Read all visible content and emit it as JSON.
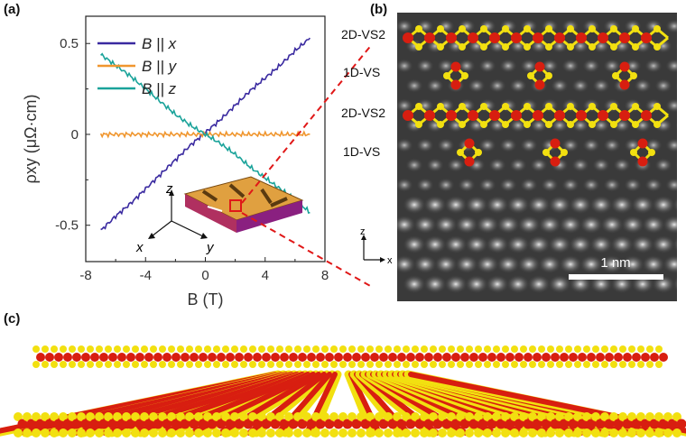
{
  "panels": {
    "a": "(a)",
    "b": "(b)",
    "c": "(c)"
  },
  "chart_data": {
    "type": "line",
    "xlabel": "B (T)",
    "ylabel": "ρxy (μΩ·cm)",
    "xlim": [
      -8,
      8
    ],
    "ylim": [
      -0.7,
      0.65
    ],
    "xticks": [
      "-8",
      "-4",
      "0",
      "4",
      "8"
    ],
    "yticks": [
      "-0.5",
      "0",
      "0.5"
    ],
    "x": [
      -7,
      -6,
      -5,
      -4,
      -3,
      -2,
      -1,
      0,
      1,
      2,
      3,
      4,
      5,
      6,
      7
    ],
    "series": [
      {
        "name": "B || x",
        "color": "#3a2aa0",
        "values": [
          -0.53,
          -0.45,
          -0.38,
          -0.3,
          -0.22,
          -0.14,
          -0.06,
          0.01,
          0.08,
          0.16,
          0.24,
          0.31,
          0.38,
          0.46,
          0.53
        ]
      },
      {
        "name": "B || y",
        "color": "#f0962e",
        "values": [
          0,
          0,
          0,
          0,
          0,
          0,
          0,
          0,
          0,
          0,
          0,
          0,
          0,
          0,
          0
        ]
      },
      {
        "name": "B || z",
        "color": "#1aa39a",
        "values": [
          0.44,
          0.38,
          0.32,
          0.25,
          0.18,
          0.11,
          0.05,
          0.0,
          -0.05,
          -0.11,
          -0.18,
          -0.24,
          -0.3,
          -0.36,
          -0.43
        ]
      }
    ],
    "legend": "top-left",
    "grid": false
  },
  "inset": {
    "axes": [
      "z",
      "x",
      "y"
    ]
  },
  "panel_b": {
    "labels": [
      "2D-VS2",
      "1D-VS",
      "2D-VS2",
      "1D-VS"
    ],
    "axis_z": "z",
    "axis_x": "x",
    "scalebar": "1 nm"
  },
  "colors": {
    "atom_v": "#d81e10",
    "atom_s": "#f2e010"
  }
}
